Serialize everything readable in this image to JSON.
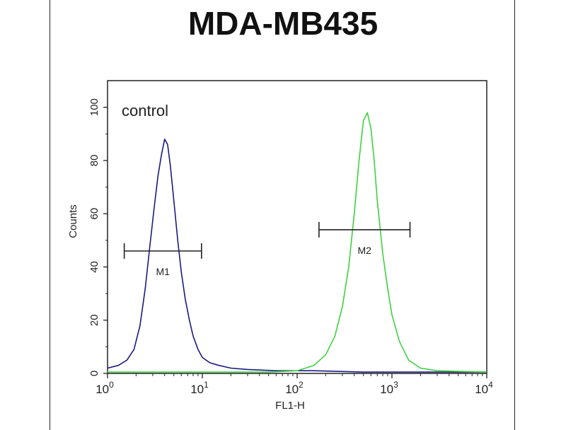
{
  "chart_data": {
    "type": "line",
    "title": "MDA-MB435",
    "xlabel": "FL1-H",
    "ylabel": "Counts",
    "x_scale": "log",
    "xlim": [
      1,
      10000
    ],
    "ylim": [
      0,
      110
    ],
    "x_ticks": [
      {
        "value": 1,
        "base": "10",
        "exp": "0"
      },
      {
        "value": 10,
        "base": "10",
        "exp": "1"
      },
      {
        "value": 100,
        "base": "10",
        "exp": "2"
      },
      {
        "value": 1000,
        "base": "10",
        "exp": "3"
      },
      {
        "value": 10000,
        "base": "10",
        "exp": "4"
      }
    ],
    "y_ticks": [
      0,
      20,
      40,
      60,
      80,
      100
    ],
    "annotation": "control",
    "grid": false,
    "series": [
      {
        "color": "#1a1a80",
        "x": [
          1,
          1.3,
          1.6,
          1.9,
          2.2,
          2.5,
          2.8,
          3.1,
          3.4,
          3.7,
          4.0,
          4.3,
          4.6,
          5.0,
          5.5,
          6.0,
          6.6,
          7.3,
          8.0,
          9.0,
          10,
          12,
          15,
          20,
          30,
          60,
          150,
          500,
          2000,
          10000
        ],
        "y": [
          2,
          3,
          5,
          9,
          18,
          32,
          48,
          62,
          74,
          82,
          88,
          86,
          78,
          65,
          50,
          38,
          28,
          20,
          14,
          9,
          6,
          4,
          3,
          2,
          1.5,
          1,
          1,
          0.5,
          0.5,
          0.5
        ]
      },
      {
        "color": "#40d040",
        "x": [
          1,
          10,
          50,
          100,
          150,
          200,
          250,
          300,
          350,
          400,
          450,
          500,
          550,
          600,
          650,
          700,
          800,
          900,
          1000,
          1200,
          1500,
          2000,
          3000,
          10000
        ],
        "y": [
          0.5,
          0.5,
          0.5,
          1,
          3,
          7,
          14,
          25,
          40,
          60,
          80,
          95,
          98,
          92,
          80,
          65,
          45,
          32,
          22,
          12,
          5,
          2,
          1,
          0.5
        ]
      }
    ],
    "markers": [
      {
        "label": "M1",
        "from": 1.5,
        "to": 9.8,
        "y": 46
      },
      {
        "label": "M2",
        "from": 170,
        "to": 1550,
        "y": 54
      }
    ]
  }
}
